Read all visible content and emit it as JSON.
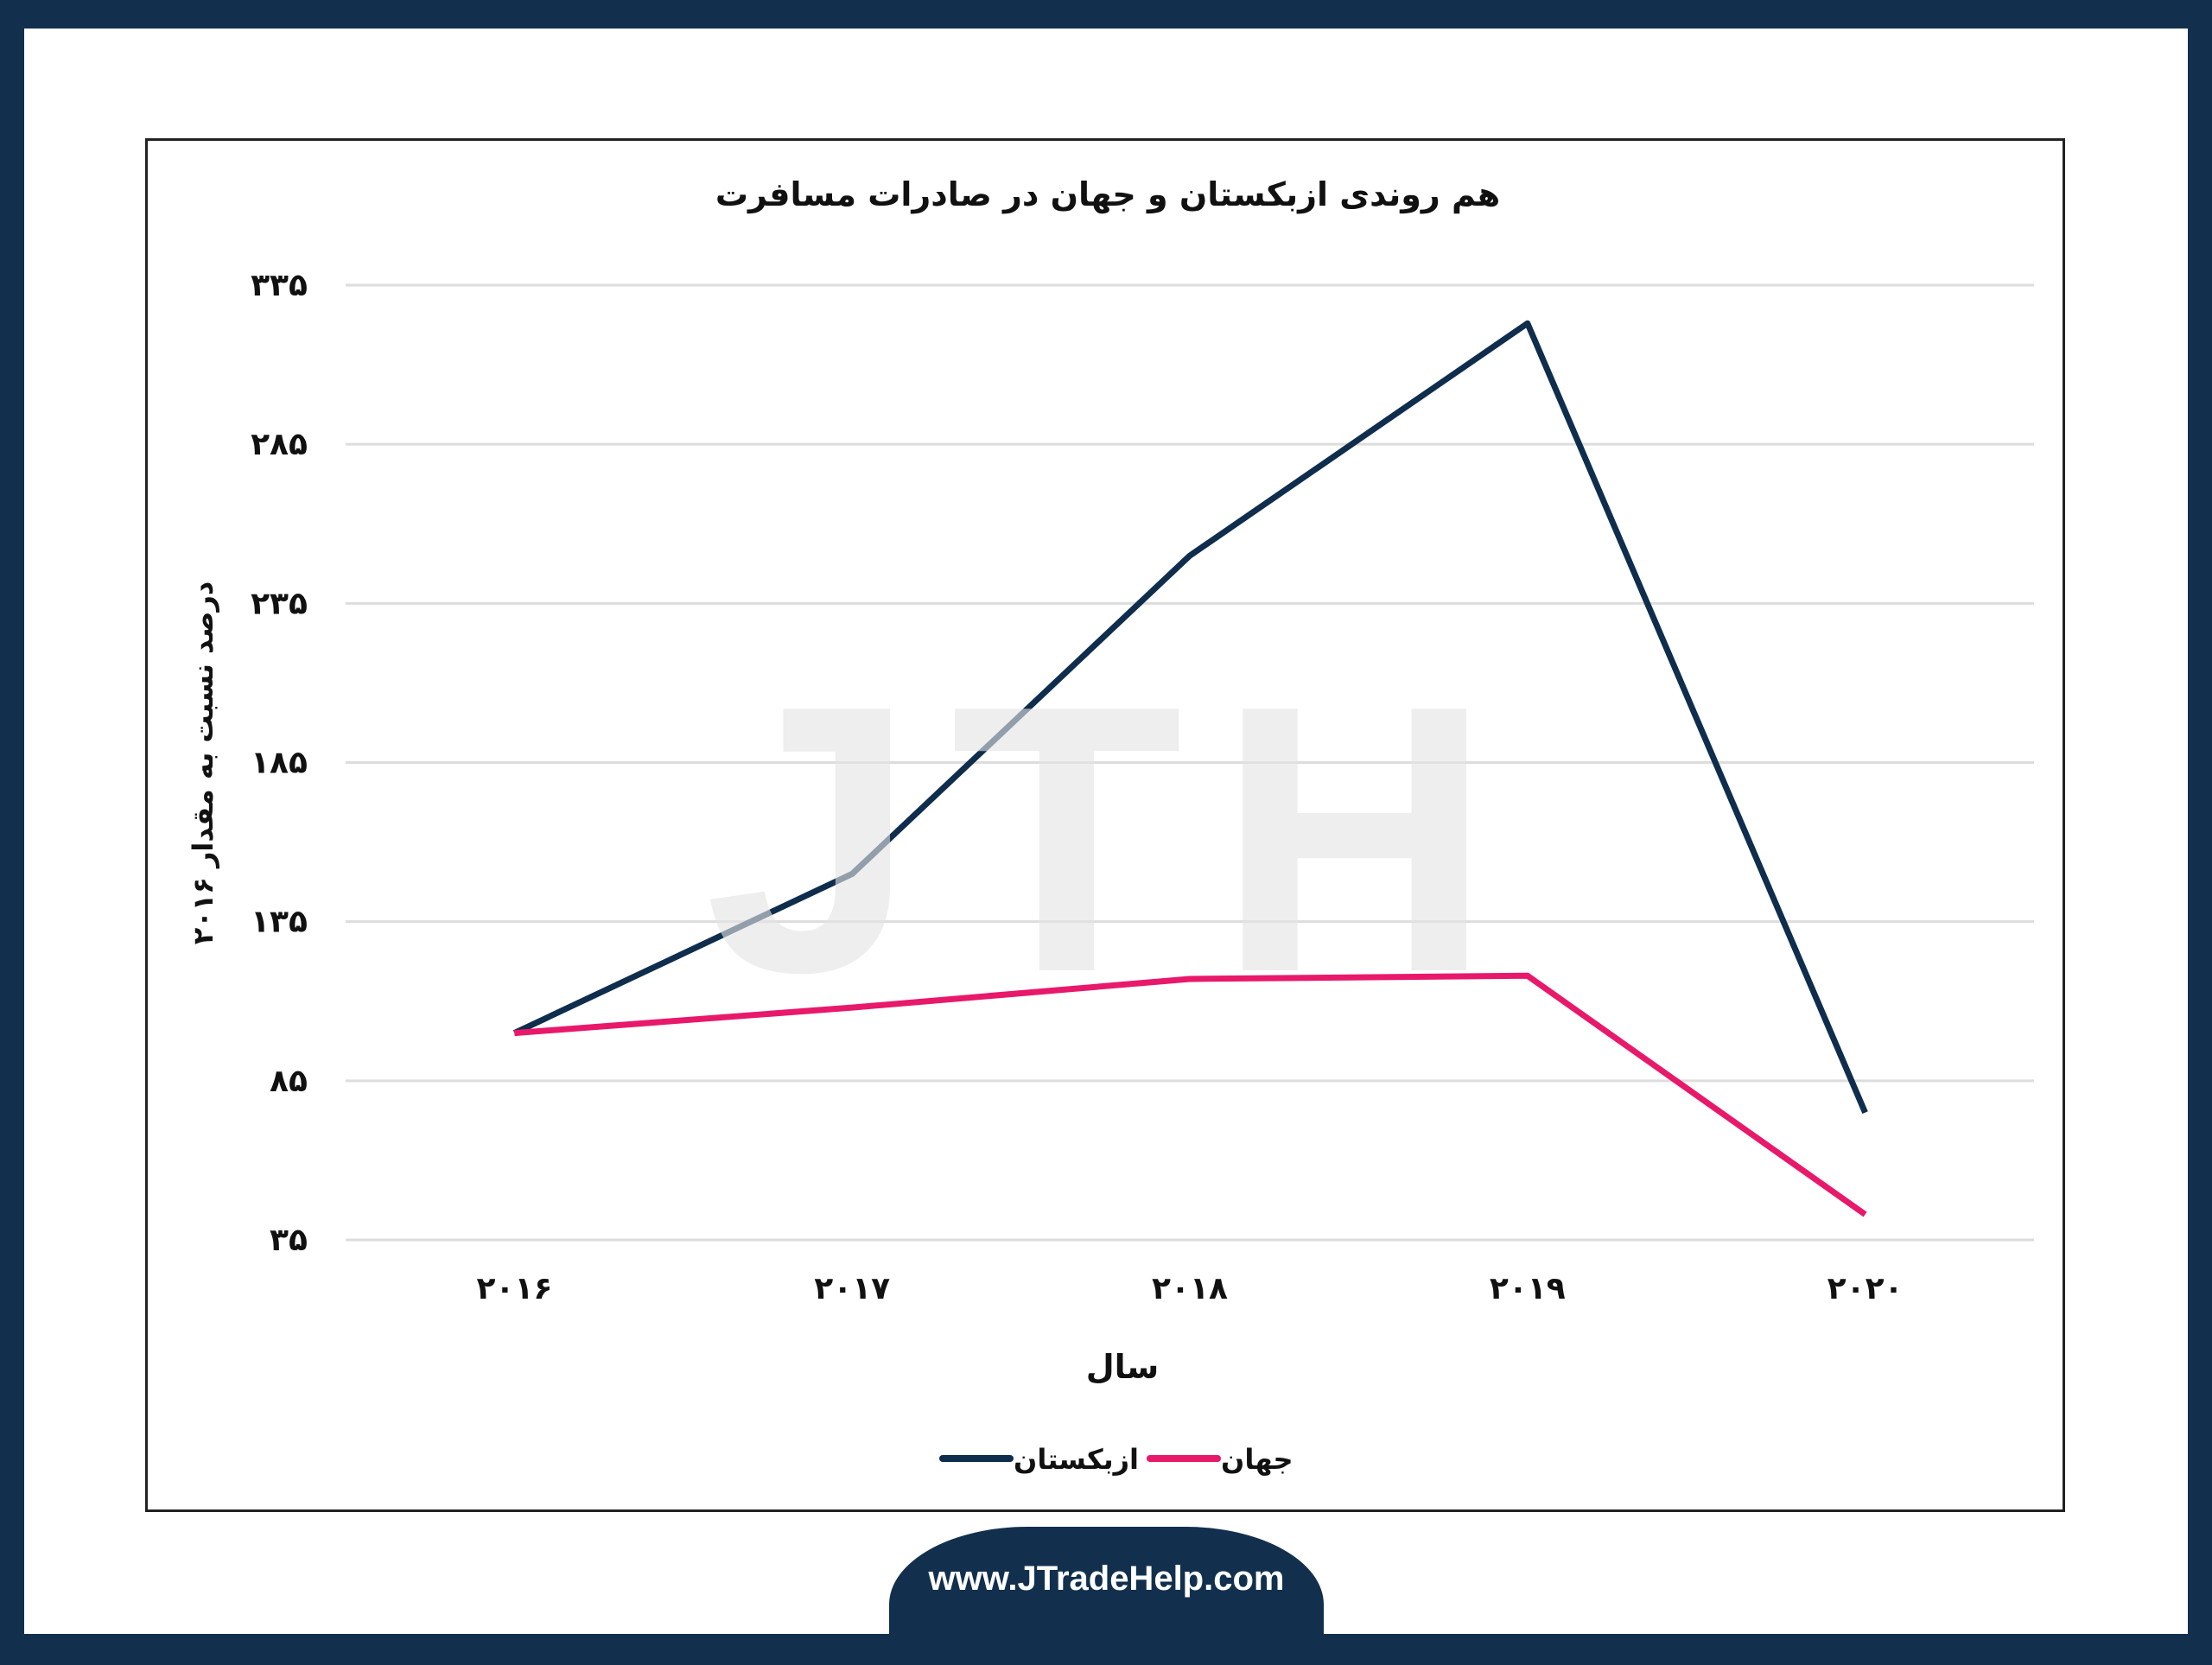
{
  "footer": {
    "url": "www.JTradeHelp.com"
  },
  "watermark": "JTH",
  "colors": {
    "uzbekistan": "#0f2d4c",
    "world": "#e8196a",
    "grid": "#dddddd",
    "frame": "#12304d"
  },
  "chart_data": {
    "type": "line",
    "title": "هم روندی ازبکستان و جهان در صادرات مسافرت",
    "xlabel": "سال",
    "ylabel": "درصد نسبت به مقدار ۲۰۱۶",
    "categories": [
      "۲۰۱۶",
      "۲۰۱۷",
      "۲۰۱۸",
      "۲۰۱۹",
      "۲۰۲۰"
    ],
    "yticks": [
      35,
      85,
      135,
      185,
      235,
      285,
      335
    ],
    "ytick_labels": [
      "۳۵",
      "۸۵",
      "۱۳۵",
      "۱۸۵",
      "۲۳۵",
      "۲۸۵",
      "۳۳۵"
    ],
    "ylim": [
      35,
      335
    ],
    "grid": true,
    "legend_position": "bottom",
    "series": [
      {
        "name": "ازبکستان",
        "color": "#0f2d4c",
        "values": [
          100,
          150,
          250,
          323,
          75
        ]
      },
      {
        "name": "جهان",
        "color": "#e8196a",
        "values": [
          100,
          108,
          117,
          118,
          43
        ]
      }
    ]
  }
}
